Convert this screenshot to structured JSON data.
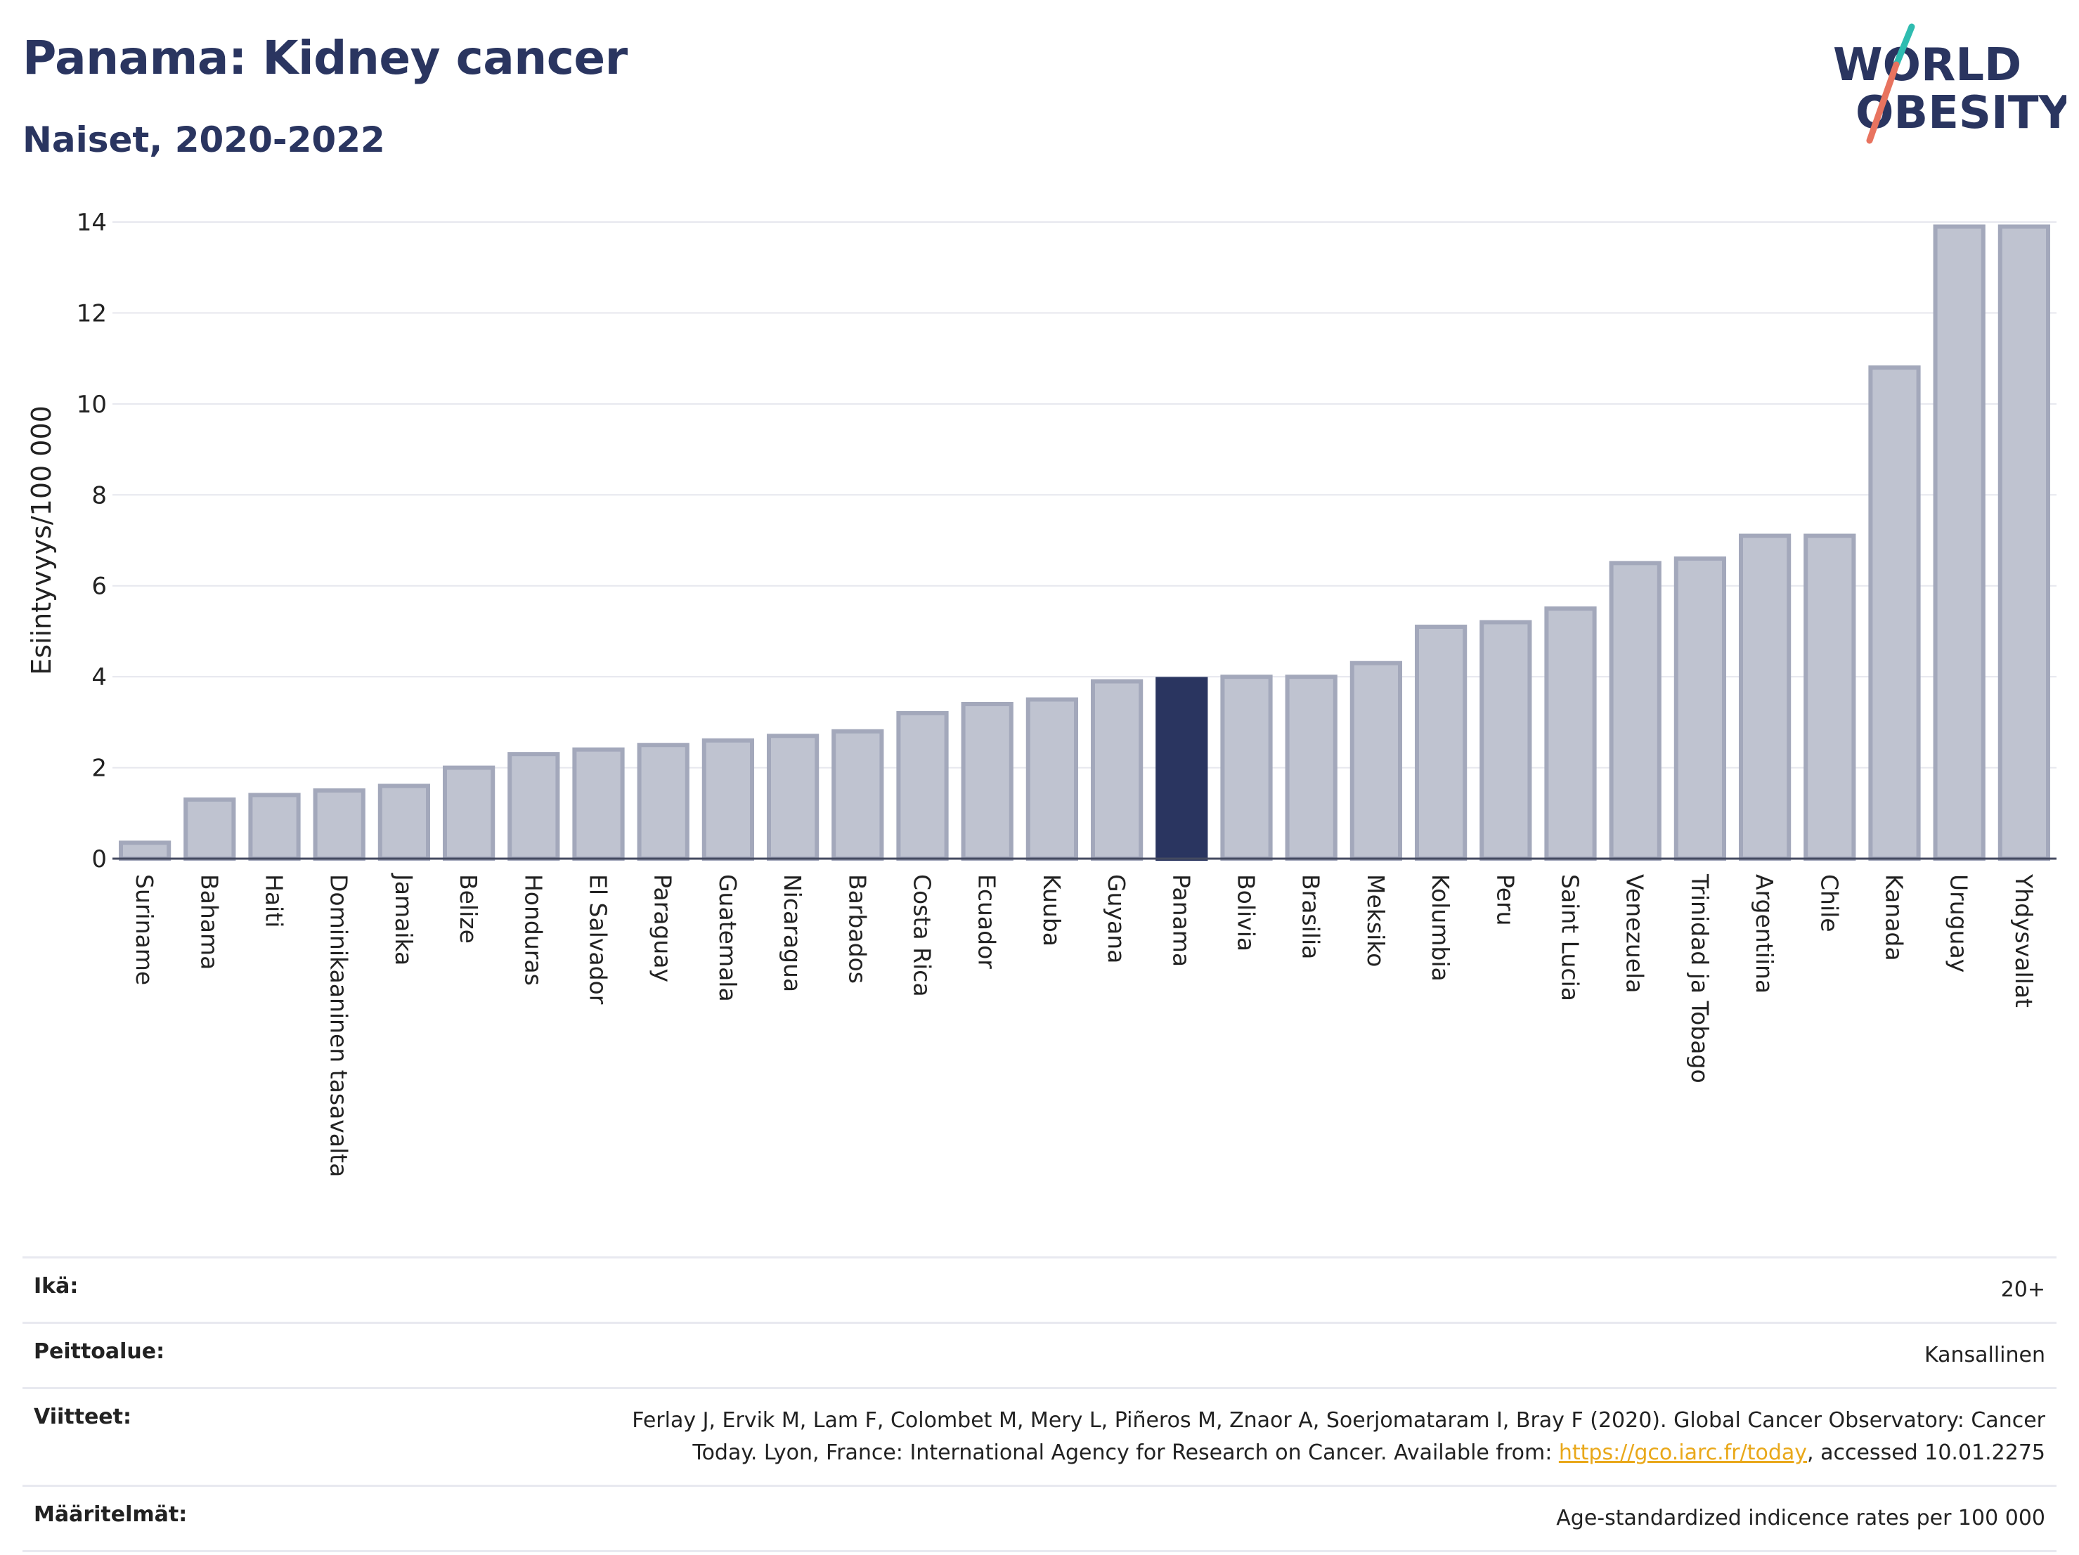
{
  "header": {
    "title": "Panama: Kidney cancer",
    "subtitle": "Naiset, 2020-2022"
  },
  "logo": {
    "line1": "WORLD",
    "line2": "OBESITY"
  },
  "colors": {
    "bar_default": "#bfc3d0",
    "bar_default_border": "#a3a8bb",
    "bar_highlight": "#2a3560",
    "title": "#2a3560",
    "link": "#e9a81a",
    "logo_teal": "#2fbcb0",
    "logo_coral": "#e8735f"
  },
  "chart_data": {
    "type": "bar",
    "ylabel": "Esiintyvyys/100 000",
    "ylim": [
      0,
      14
    ],
    "yticks": [
      0,
      2,
      4,
      6,
      8,
      10,
      12,
      14
    ],
    "grid": true,
    "highlight": "Panama",
    "categories": [
      "Suriname",
      "Bahama",
      "Haiti",
      "Dominikaaninen tasavalta",
      "Jamaika",
      "Belize",
      "Honduras",
      "El Salvador",
      "Paraguay",
      "Guatemala",
      "Nicaragua",
      "Barbados",
      "Costa Rica",
      "Ecuador",
      "Kuuba",
      "Guyana",
      "Panama",
      "Bolivia",
      "Brasilia",
      "Meksiko",
      "Kolumbia",
      "Peru",
      "Saint Lucia",
      "Venezuela",
      "Trinidad ja Tobago",
      "Argentiina",
      "Chile",
      "Kanada",
      "Uruguay",
      "Yhdysvallat"
    ],
    "values": [
      0.35,
      1.3,
      1.4,
      1.5,
      1.6,
      2.0,
      2.3,
      2.4,
      2.5,
      2.6,
      2.7,
      2.8,
      3.2,
      3.4,
      3.5,
      3.9,
      3.95,
      4.0,
      4.0,
      4.3,
      5.1,
      5.2,
      5.5,
      6.5,
      6.6,
      7.1,
      7.1,
      10.8,
      13.9,
      13.9
    ]
  },
  "meta": {
    "age_label": "Ikä:",
    "age_value": "20+",
    "coverage_label": "Peittoalue:",
    "coverage_value": "Kansallinen",
    "references_label": "Viitteet:",
    "references_text_1": "Ferlay J, Ervik M, Lam F, Colombet M, Mery L, Piñeros M, Znaor A, Soerjomataram I, Bray F (2020). Global Cancer Observatory: Cancer Today. Lyon, France: International Agency for Research on Cancer. Available from: ",
    "references_link": "https://gco.iarc.fr/today",
    "references_text_2": ", accessed 10.01.2275",
    "definitions_label": "Määritelmät:",
    "definitions_value": "Age-standardized indicence rates per 100 000"
  }
}
